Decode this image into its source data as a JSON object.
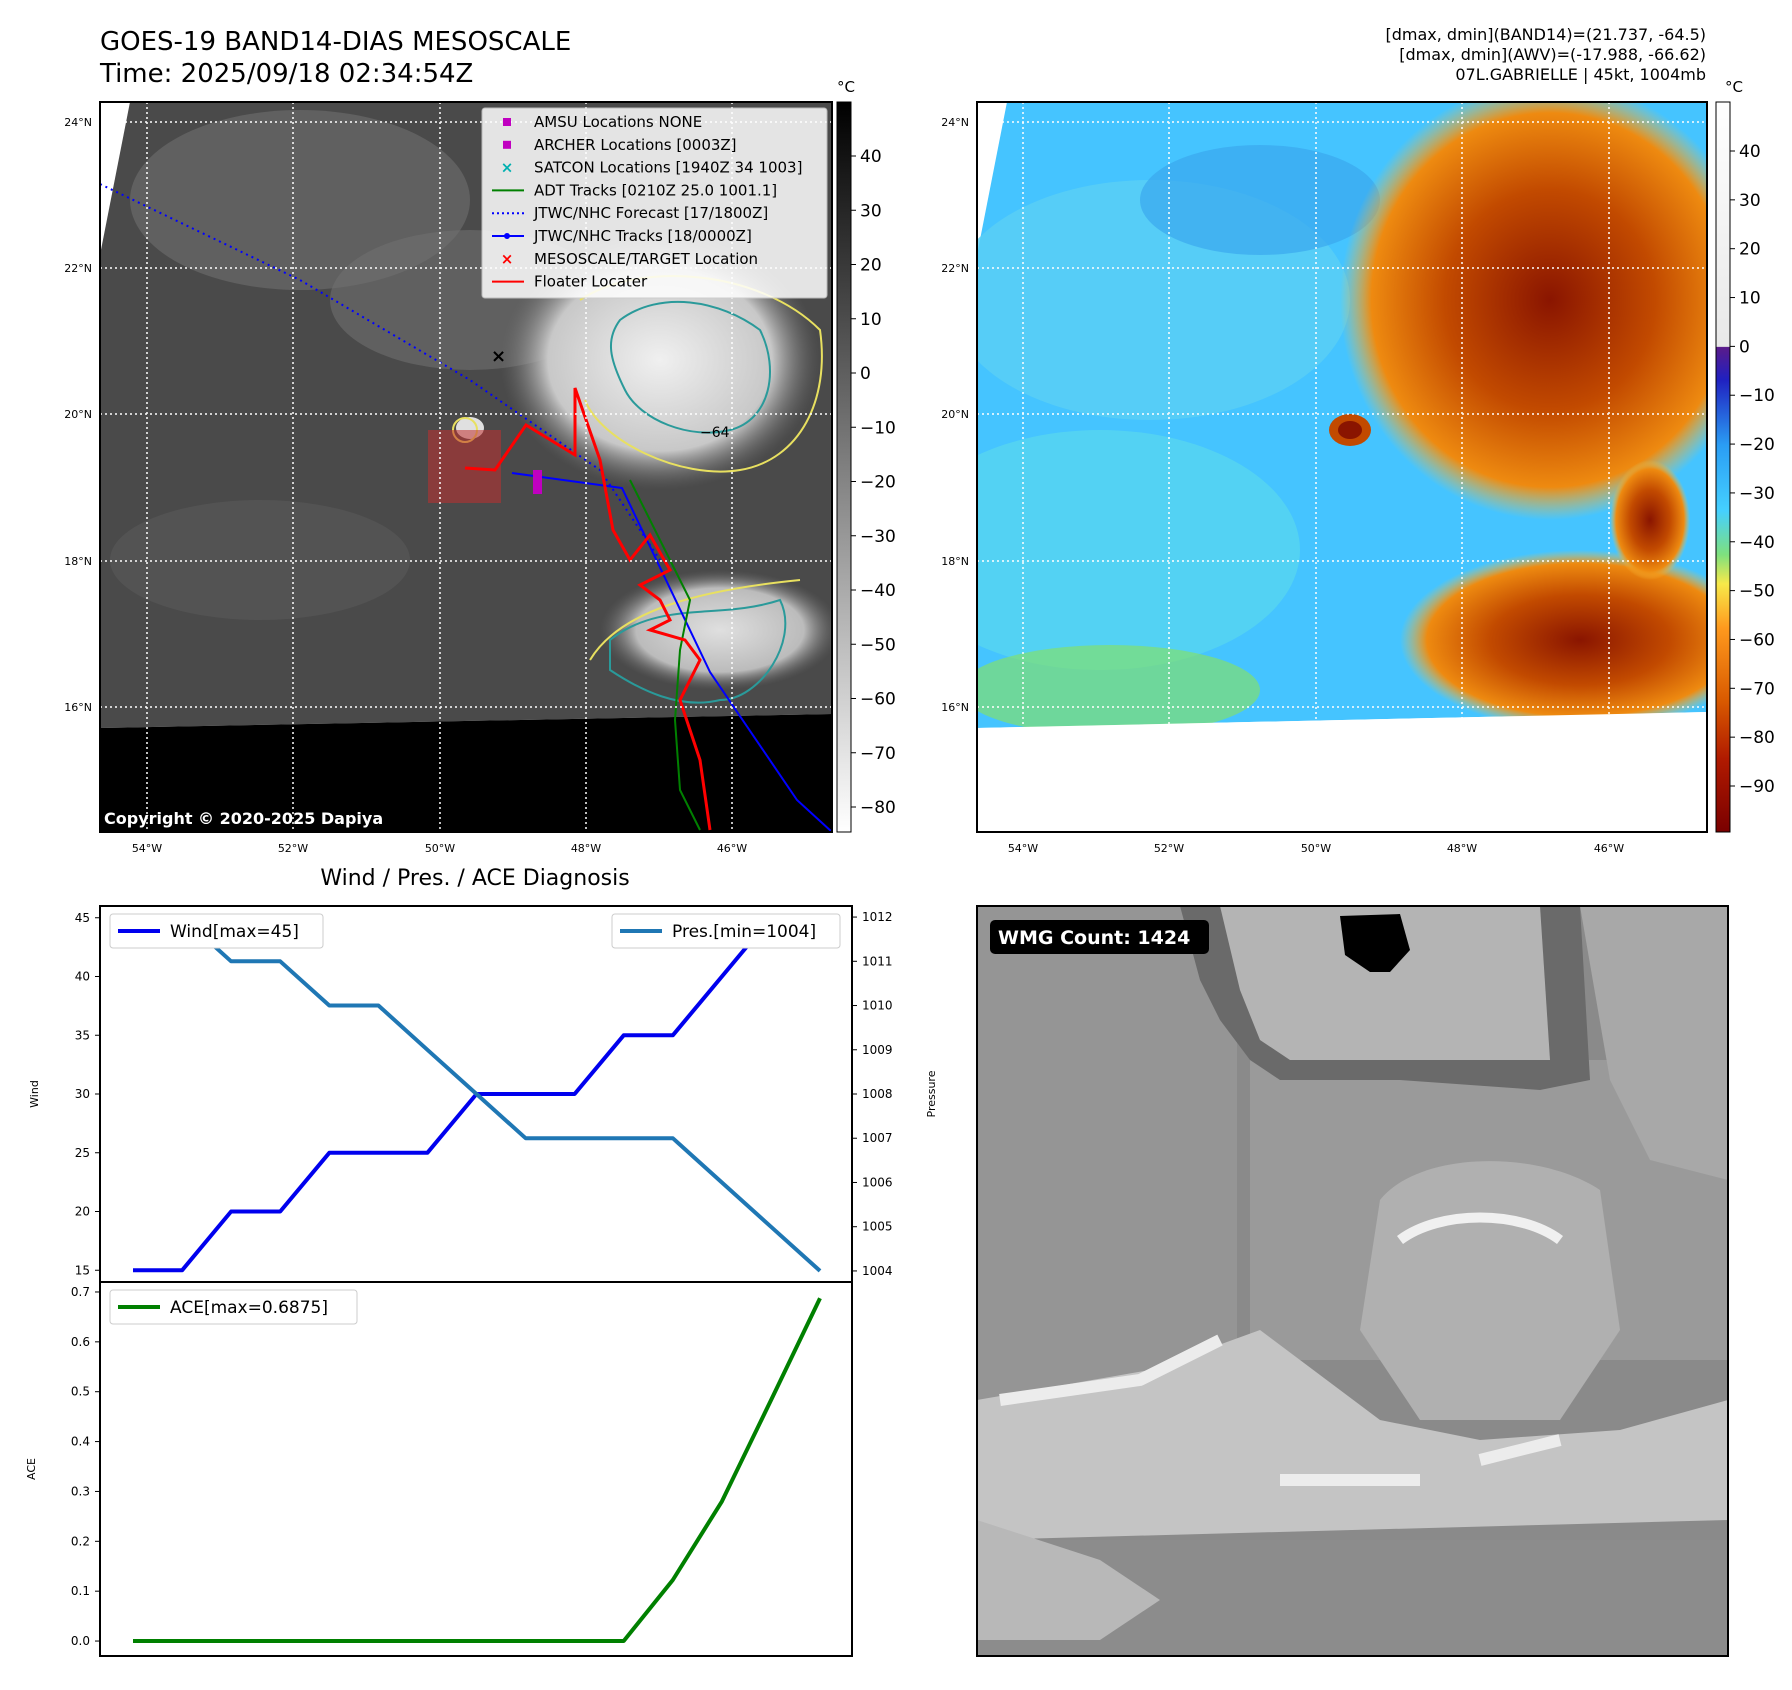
{
  "header": {
    "title_line1": "GOES-19 BAND14-DIAS MESOSCALE",
    "title_line2": "Time: 2025/09/18 02:34:54Z",
    "stats_line1": "[dmax, dmin](BAND14)=(21.737, -64.5)",
    "stats_line2": "[dmax, dmin](AWV)=(-17.988, -66.62)",
    "stats_line3": "07L.GABRIELLE | 45kt, 1004mb"
  },
  "map_axes": {
    "lat_labels": [
      "24°N",
      "22°N",
      "20°N",
      "18°N",
      "16°N"
    ],
    "lon_labels": [
      "54°W",
      "52°W",
      "50°W",
      "48°W",
      "46°W"
    ]
  },
  "ir_panel": {
    "colorbar_unit": "°C",
    "colorbar_ticks": [
      "40",
      "30",
      "20",
      "10",
      "0",
      "−10",
      "−20",
      "−30",
      "−40",
      "−50",
      "−60",
      "−70",
      "−80"
    ],
    "contour_label": "−64",
    "copyright": "Copyright © 2020-2025 Dapiya",
    "legend": [
      {
        "label": "AMSU Locations NONE",
        "color": "#c000c0",
        "marker": "square"
      },
      {
        "label": "ARCHER Locations [0003Z]",
        "color": "#c000c0",
        "marker": "square"
      },
      {
        "label": "SATCON Locations [1940Z 34 1003]",
        "color": "#00b0b0",
        "marker": "x"
      },
      {
        "label": "ADT Tracks [0210Z 25.0 1001.1]",
        "color": "#008000",
        "marker": "line"
      },
      {
        "label": "JTWC/NHC Forecast [17/1800Z]",
        "color": "#0000ff",
        "marker": "dotted"
      },
      {
        "label": "JTWC/NHC Tracks [18/0000Z]",
        "color": "#0000ff",
        "marker": "line-dot"
      },
      {
        "label": "MESOSCALE/TARGET Location",
        "color": "#ff0000",
        "marker": "x"
      },
      {
        "label": "Floater Locater",
        "color": "#ff0000",
        "marker": "line"
      }
    ]
  },
  "awv_panel": {
    "colorbar_unit": "°C",
    "colorbar_ticks": [
      "40",
      "30",
      "20",
      "10",
      "0",
      "−10",
      "−20",
      "−30",
      "−40",
      "−50",
      "−60",
      "−70",
      "−80",
      "−90"
    ]
  },
  "wmg_panel": {
    "badge": "WMG Count: 1424"
  },
  "chart_data": [
    {
      "type": "line",
      "title": "Wind / Pres. / ACE Diagnosis",
      "x": [
        0,
        1,
        2,
        3,
        4,
        5,
        6,
        7,
        8,
        9,
        10,
        11,
        12,
        13,
        14
      ],
      "series": [
        {
          "name": "Wind[max=45]",
          "axis": "left",
          "color": "#0000ee",
          "values": [
            15,
            15,
            20,
            20,
            25,
            25,
            25,
            30,
            30,
            30,
            35,
            35,
            40,
            45,
            45
          ]
        },
        {
          "name": "Pres.[min=1004]",
          "axis": "right",
          "color": "#1f77b4",
          "values": [
            1012,
            1012,
            1011,
            1011,
            1010,
            1010,
            1009,
            1008,
            1007,
            1007,
            1007,
            1007,
            1006,
            1005,
            1004
          ]
        }
      ],
      "ylabel": "Wind",
      "ylabel_right": "Pressure",
      "ylim": [
        14,
        46
      ],
      "ylim_right": [
        1003.75,
        1012.25
      ],
      "yticks": [
        15,
        20,
        25,
        30,
        35,
        40,
        45
      ],
      "yticks_right": [
        1004,
        1005,
        1006,
        1007,
        1008,
        1009,
        1010,
        1011,
        1012
      ]
    },
    {
      "type": "line",
      "title": "",
      "x": [
        0,
        1,
        2,
        3,
        4,
        5,
        6,
        7,
        8,
        9,
        10,
        11,
        12,
        13,
        14
      ],
      "series": [
        {
          "name": "ACE[max=0.6875]",
          "color": "#008000",
          "values": [
            0,
            0,
            0,
            0,
            0,
            0,
            0,
            0,
            0,
            0,
            0,
            0.1225,
            0.28,
            0.4825,
            0.6875
          ]
        }
      ],
      "ylabel": "ACE",
      "ylim": [
        -0.03,
        0.72
      ],
      "yticks": [
        0.0,
        0.1,
        0.2,
        0.3,
        0.4,
        0.5,
        0.6,
        0.7
      ]
    }
  ]
}
